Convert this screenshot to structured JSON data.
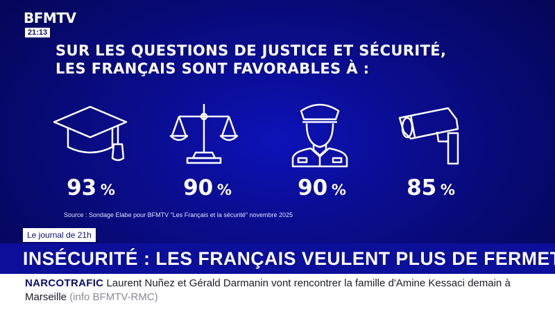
{
  "channel": {
    "logo": "BFMTV",
    "time": "21:13"
  },
  "infographic": {
    "headline_line1": "SUR LES QUESTIONS DE JUSTICE ET SÉCURITÉ,",
    "headline_line2": "LES FRANÇAIS SONT FAVORABLES À :",
    "items": [
      {
        "icon": "graduation-cap-icon",
        "value": "93",
        "unit": "%"
      },
      {
        "icon": "scales-of-justice-icon",
        "value": "90",
        "unit": "%"
      },
      {
        "icon": "police-officer-icon",
        "value": "90",
        "unit": "%"
      },
      {
        "icon": "surveillance-camera-icon",
        "value": "85",
        "unit": "%"
      }
    ],
    "source": "Source : Sondage Elabe pour BFMTV \"Les Français et la sécurité\" novembre 2025"
  },
  "lower_third": {
    "show": "Le journal de 21h",
    "title": "INSÉCURITÉ : LES FRANÇAIS VEULENT PLUS DE FERMETÉ"
  },
  "ticker": {
    "tag": "NARCOTRAFIC",
    "text": "Laurent Nuñez et Gérald Darmanin vont rencontrer la famille d'Amine Kessaci demain à Marseille",
    "credit": "(info BFMTV-RMC)"
  },
  "colors": {
    "background": "#0a0d8e",
    "banner": "#0b0f9a",
    "ticker_bg": "#ffffff",
    "text": "#ffffff"
  }
}
